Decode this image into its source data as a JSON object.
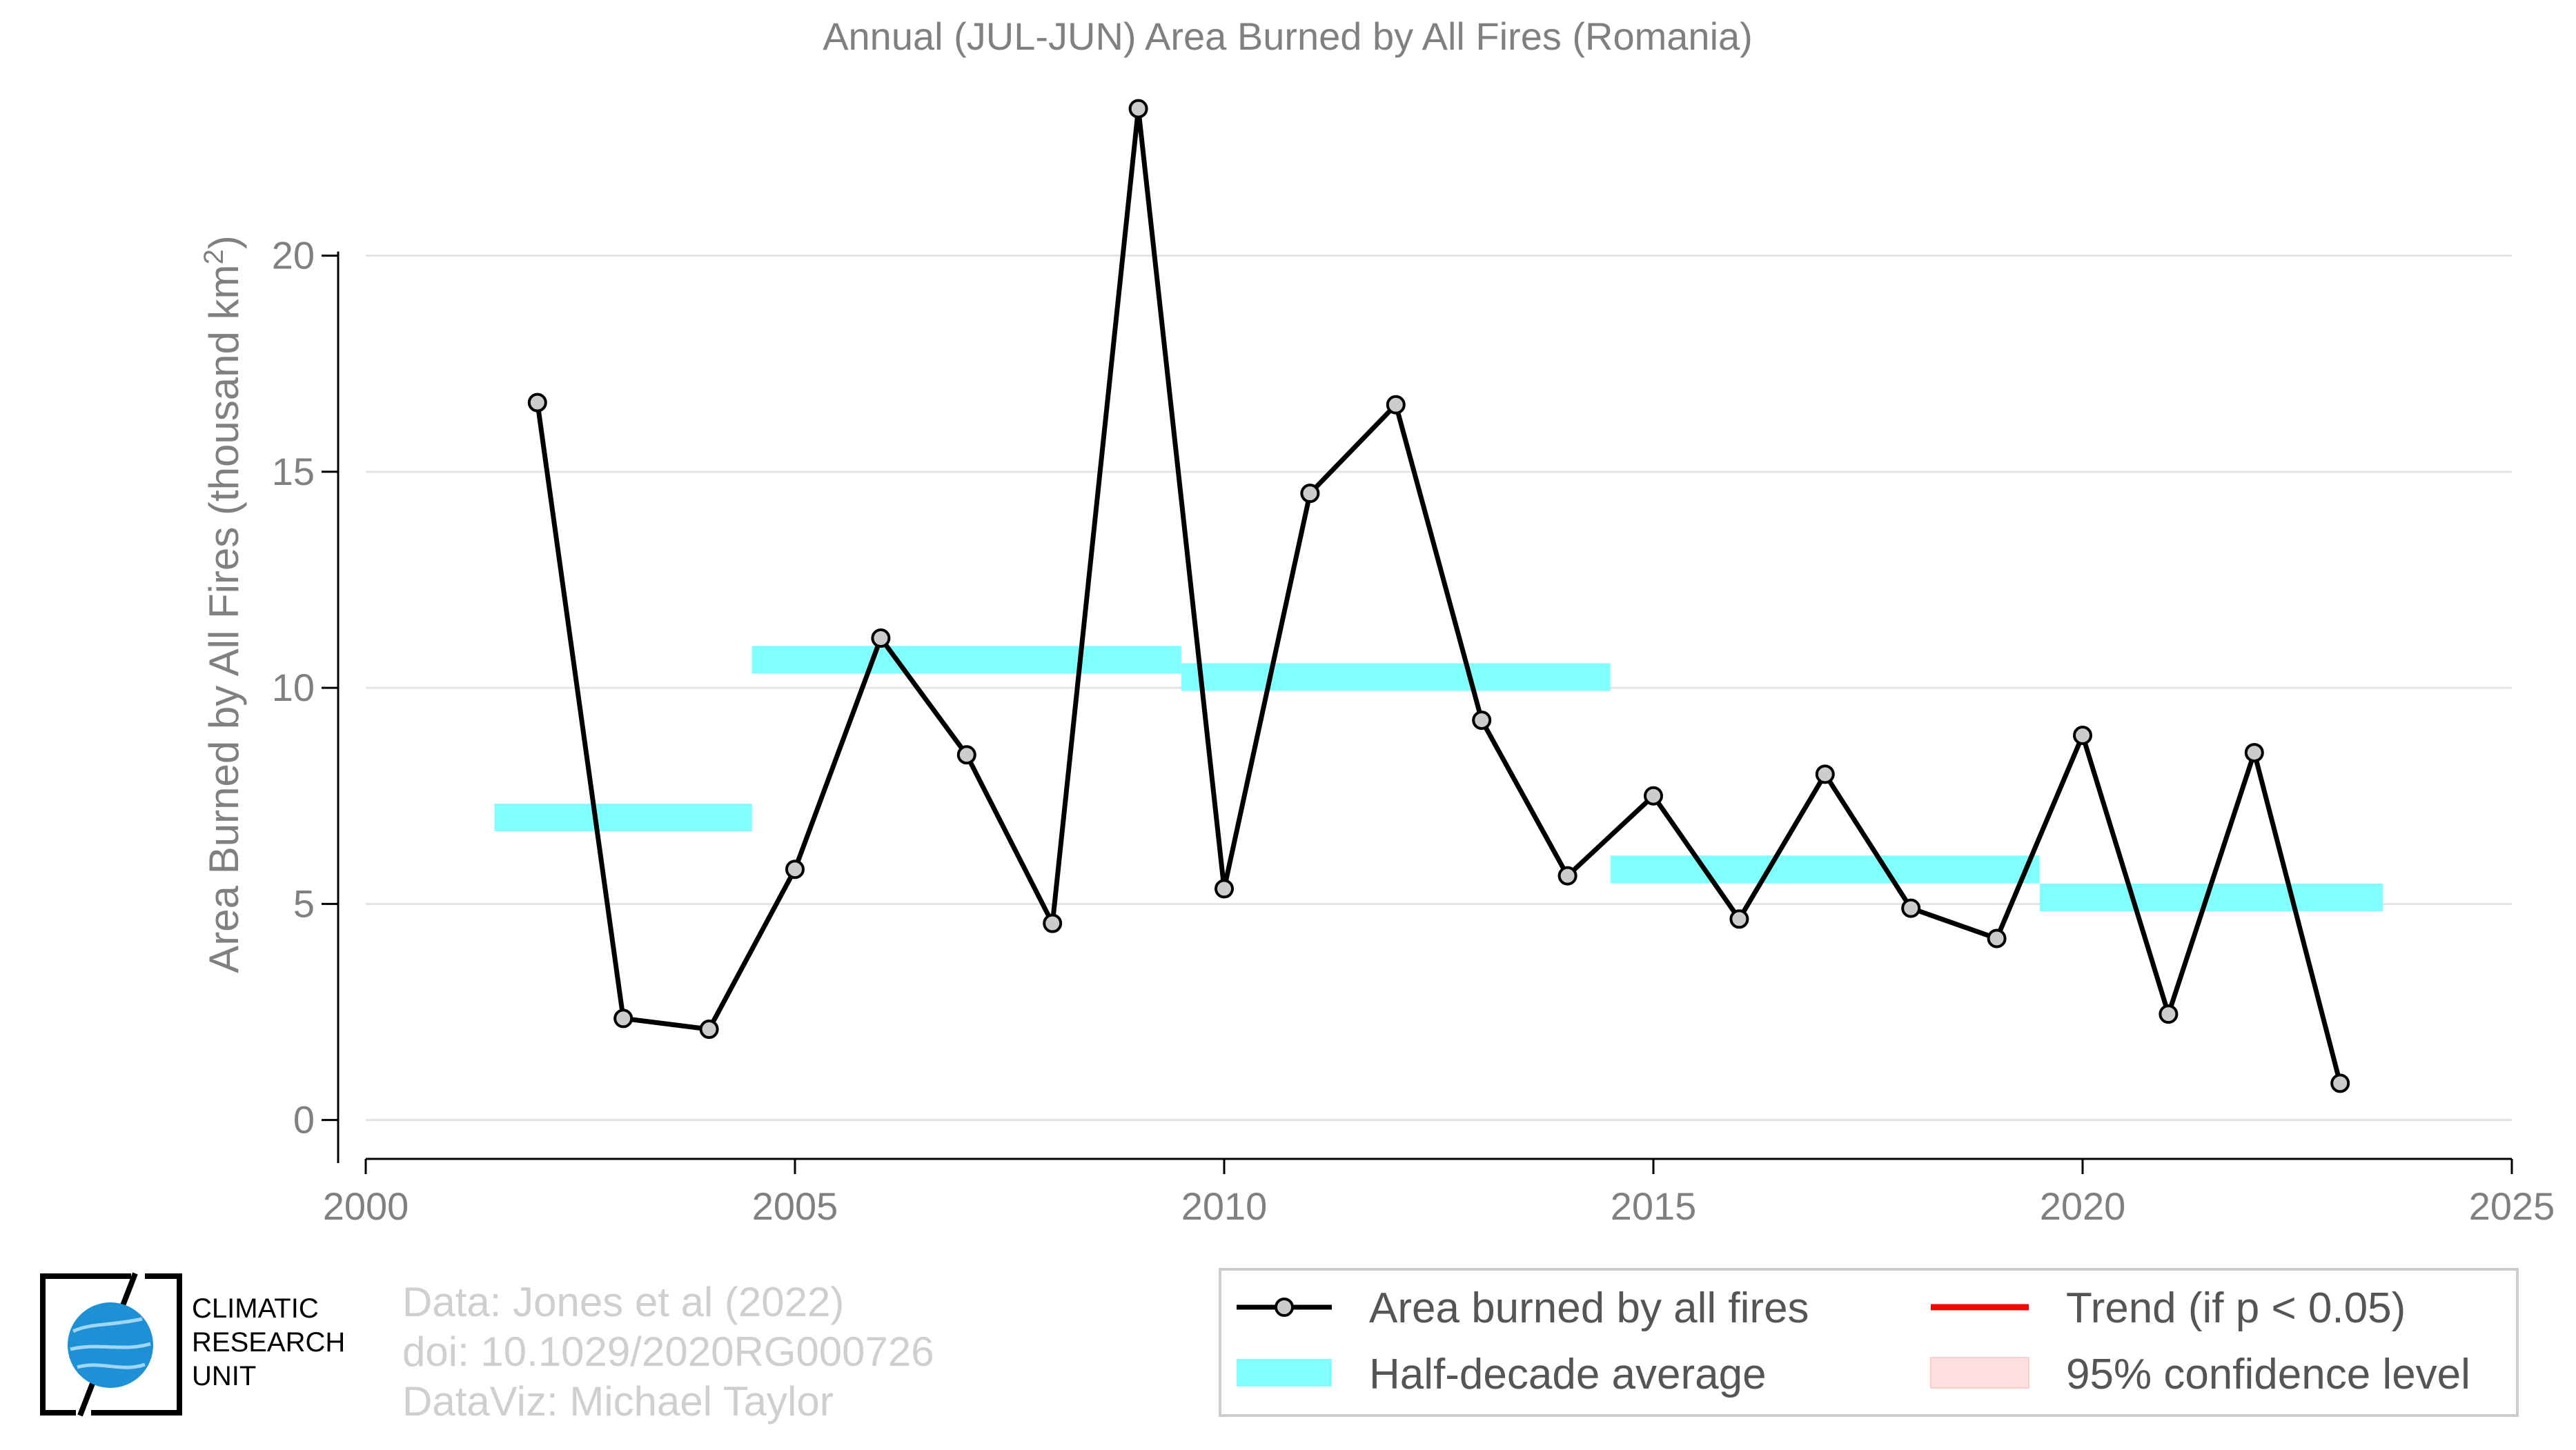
{
  "chart_data": {
    "type": "line",
    "title": "Annual (JUL-JUN) Area Burned by All Fires (Romania)",
    "xlabel": "",
    "ylabel": "Area Burned by All Fires (thousand km",
    "ylabel_sup": "2",
    "ylabel_end": ")",
    "xlim": [
      2000,
      2025
    ],
    "ylim": [
      -0.9,
      24
    ],
    "x_ticks": [
      2000,
      2005,
      2010,
      2015,
      2020,
      2025
    ],
    "y_ticks": [
      0,
      5,
      10,
      15,
      20
    ],
    "grid": "horizontal",
    "series": [
      {
        "name": "Area burned by all fires",
        "color": "#000000",
        "marker_color": "#cccccc",
        "x": [
          2002,
          2003,
          2004,
          2005,
          2006,
          2007,
          2008,
          2009,
          2010,
          2011,
          2012,
          2013,
          2014,
          2015,
          2016,
          2017,
          2018,
          2019,
          2020,
          2021,
          2022,
          2023
        ],
        "y": [
          16.6,
          2.35,
          2.1,
          5.8,
          11.15,
          8.45,
          4.55,
          23.4,
          5.35,
          14.5,
          16.55,
          9.25,
          5.65,
          7.5,
          4.65,
          8.0,
          4.9,
          4.2,
          8.9,
          2.45,
          8.5,
          0.85
        ]
      }
    ],
    "half_decade_average": {
      "name": "Half-decade average",
      "color": "#80ffff",
      "segments": [
        {
          "x": [
            2001.5,
            2004.5
          ],
          "y": 7.0
        },
        {
          "x": [
            2004.5,
            2009.5
          ],
          "y": 10.65
        },
        {
          "x": [
            2009.5,
            2014.5
          ],
          "y": 10.25
        },
        {
          "x": [
            2014.5,
            2019.5
          ],
          "y": 5.8
        },
        {
          "x": [
            2019.5,
            2023.5
          ],
          "y": 5.15
        }
      ]
    },
    "legend": {
      "placement": "bottom-right",
      "entries": [
        {
          "label": "Area burned by all fires",
          "color": "#000000"
        },
        {
          "label": "Trend (if p < 0.05)",
          "color": "#ff0000"
        },
        {
          "label": "Half-decade average",
          "color": "#80ffff"
        },
        {
          "label": "95% confidence level",
          "color": "#ffe0e0"
        }
      ]
    }
  },
  "credits": {
    "line1": "Data: Jones et al (2022)",
    "line2": "doi: 10.1029/2020RG000726",
    "line3": "DataViz: Michael Taylor"
  },
  "logo": {
    "line1": "CLIMATIC",
    "line2": "RESEARCH",
    "line3": "UNIT",
    "accent": "#1e90d6"
  }
}
